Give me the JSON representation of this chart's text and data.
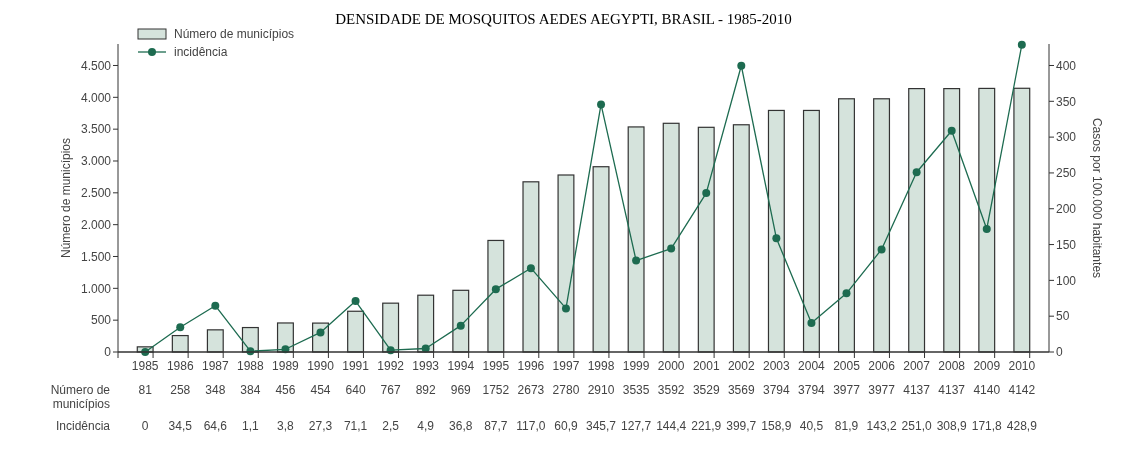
{
  "chart_data": {
    "type": "bar",
    "title": "DENSIDADE DE MOSQUITOS AEDES AEGYPTI, BRASIL - 1985-2010",
    "ylabel": "Número de municípios",
    "y2label": "Casos por 100.000 habitantes",
    "categories": [
      "1985",
      "1986",
      "1987",
      "1988",
      "1989",
      "1990",
      "1991",
      "1992",
      "1993",
      "1994",
      "1995",
      "1996",
      "1997",
      "1998",
      "1999",
      "2000",
      "2001",
      "2002",
      "2003",
      "2004",
      "2005",
      "2006",
      "2007",
      "2008",
      "2009",
      "2010"
    ],
    "series": [
      {
        "name": "Número de municípios",
        "color": "#d5e3dc",
        "values": [
          81,
          258,
          348,
          384,
          456,
          454,
          640,
          767,
          892,
          969,
          1752,
          2673,
          2780,
          2910,
          3535,
          3592,
          3529,
          3569,
          3794,
          3794,
          3977,
          3977,
          4137,
          4137,
          4140,
          4142
        ],
        "value_labels": [
          "81",
          "258",
          "348",
          "384",
          "456",
          "454",
          "640",
          "767",
          "892",
          "969",
          "1752",
          "2673",
          "2780",
          "2910",
          "3535",
          "3592",
          "3529",
          "3569",
          "3794",
          "3794",
          "3977",
          "3977",
          "4137",
          "4137",
          "4140",
          "4142"
        ]
      },
      {
        "name": "incidência",
        "type": "line",
        "axis": "y2",
        "color": "#1d6b50",
        "values": [
          0,
          34.5,
          64.6,
          1.1,
          3.8,
          27.3,
          71.1,
          2.5,
          4.9,
          36.8,
          87.7,
          117.0,
          60.9,
          345.7,
          127.7,
          144.4,
          221.9,
          399.7,
          158.9,
          40.5,
          81.9,
          143.2,
          251.0,
          308.9,
          171.8,
          428.9
        ],
        "value_labels": [
          "0",
          "34,5",
          "64,6",
          "1,1",
          "3,8",
          "27,3",
          "71,1",
          "2,5",
          "4,9",
          "36,8",
          "87,7",
          "117,0",
          "60,9",
          "345,7",
          "127,7",
          "144,4",
          "221,9",
          "399,7",
          "158,9",
          "40,5",
          "81,9",
          "143,2",
          "251,0",
          "308,9",
          "171,8",
          "428,9"
        ]
      }
    ],
    "annotations": [
      "Número de municípios",
      "Incidência"
    ],
    "ylim": [
      0,
      4837.5
    ],
    "yticks": [
      0,
      500,
      {
        "value": 1000,
        "label": "1.000"
      },
      {
        "value": 1500,
        "label": "1.500"
      },
      {
        "value": 2000,
        "label": "2.000"
      },
      {
        "value": 2500,
        "label": "2.500"
      },
      {
        "value": 3000,
        "label": "3.000"
      },
      {
        "value": 3500,
        "label": "3.500"
      },
      {
        "value": 4000,
        "label": "4.000"
      },
      {
        "value": 4500,
        "label": "4.500"
      }
    ],
    "y2lim": [
      0,
      430
    ],
    "y2ticks": [
      0,
      50,
      100,
      150,
      200,
      250,
      300,
      350,
      400
    ],
    "legend": "top left",
    "marker": "circle",
    "line_style": "solid",
    "grid": false
  }
}
